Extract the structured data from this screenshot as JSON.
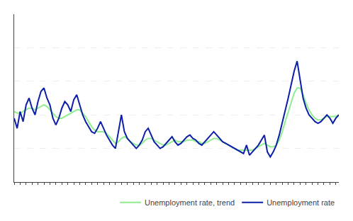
{
  "chart_data": {
    "type": "line",
    "x": [
      0,
      1,
      2,
      3,
      4,
      5,
      6,
      7,
      8,
      9,
      10,
      11,
      12,
      13,
      14,
      15,
      16,
      17,
      18,
      19,
      20,
      21,
      22,
      23,
      24,
      25,
      26,
      27,
      28,
      29,
      30,
      31,
      32,
      33,
      34,
      35,
      36,
      37,
      38,
      39,
      40,
      41,
      42,
      43,
      44,
      45,
      46,
      47,
      48,
      49,
      50,
      51,
      52,
      53,
      54,
      55,
      56,
      57,
      58,
      59,
      60,
      61,
      62,
      63,
      64,
      65,
      66,
      67,
      68,
      69,
      70,
      71,
      72,
      73,
      74,
      75,
      76,
      77,
      78,
      79,
      80,
      81,
      82,
      83,
      84,
      85,
      86,
      87,
      88,
      89,
      90,
      91,
      92,
      93,
      94,
      95,
      96,
      97,
      98,
      99,
      100,
      101,
      102,
      103,
      104,
      105,
      106,
      107,
      108,
      109
    ],
    "series": [
      {
        "name": "Unemployment rate, trend",
        "color": "#90ee90",
        "values": [
          8.2,
          8.1,
          8.1,
          8.2,
          8.3,
          8.4,
          8.4,
          8.3,
          8.4,
          8.5,
          8.6,
          8.5,
          8.3,
          8.1,
          7.9,
          7.8,
          7.8,
          7.9,
          8.0,
          8.1,
          8.2,
          8.3,
          8.3,
          8.1,
          7.9,
          7.6,
          7.3,
          7.1,
          7.0,
          7.0,
          7.0,
          6.9,
          6.7,
          6.5,
          6.3,
          6.4,
          6.6,
          6.7,
          6.6,
          6.4,
          6.3,
          6.2,
          6.2,
          6.3,
          6.5,
          6.6,
          6.6,
          6.5,
          6.4,
          6.3,
          6.2,
          6.2,
          6.3,
          6.4,
          6.5,
          6.4,
          6.4,
          6.4,
          6.5,
          6.5,
          6.5,
          6.4,
          6.4,
          6.3,
          6.3,
          6.4,
          6.5,
          6.6,
          6.6,
          6.5,
          6.4,
          6.3,
          6.2,
          6.1,
          6.0,
          5.9,
          5.9,
          5.9,
          5.9,
          5.9,
          5.9,
          6.0,
          6.1,
          6.2,
          6.3,
          6.2,
          6.1,
          6.1,
          6.2,
          6.5,
          7.0,
          7.6,
          8.2,
          8.8,
          9.3,
          9.6,
          9.6,
          9.2,
          8.7,
          8.3,
          8.0,
          7.8,
          7.7,
          7.7,
          7.8,
          7.9,
          7.9,
          7.9,
          7.9,
          8.0
        ]
      },
      {
        "name": "Unemployment rate",
        "color": "#0c1fa8",
        "values": [
          7.8,
          7.2,
          8.2,
          7.6,
          8.6,
          9.0,
          8.4,
          8.0,
          8.8,
          9.4,
          9.6,
          9.0,
          8.6,
          7.8,
          7.4,
          7.8,
          8.4,
          8.8,
          8.6,
          8.2,
          8.9,
          9.2,
          8.6,
          8.0,
          7.6,
          7.3,
          7.0,
          6.9,
          7.2,
          7.6,
          7.2,
          6.8,
          6.5,
          6.2,
          6.0,
          7.0,
          8.0,
          7.0,
          6.6,
          6.4,
          6.2,
          6.0,
          6.2,
          6.5,
          7.0,
          7.2,
          6.8,
          6.4,
          6.2,
          6.0,
          6.1,
          6.3,
          6.5,
          6.7,
          6.4,
          6.2,
          6.3,
          6.5,
          6.7,
          6.8,
          6.6,
          6.5,
          6.3,
          6.2,
          6.4,
          6.6,
          6.8,
          7.0,
          6.8,
          6.6,
          6.4,
          6.3,
          6.2,
          6.1,
          6.0,
          5.9,
          5.8,
          5.7,
          6.2,
          5.6,
          5.8,
          6.0,
          6.2,
          6.5,
          6.8,
          5.8,
          5.5,
          5.8,
          6.2,
          6.8,
          7.5,
          8.2,
          9.0,
          9.8,
          10.6,
          11.2,
          10.0,
          9.0,
          8.4,
          8.0,
          7.8,
          7.6,
          7.5,
          7.6,
          7.8,
          8.0,
          7.8,
          7.5,
          7.8,
          8.0
        ]
      }
    ],
    "xlim": [
      0,
      109
    ],
    "xticks": [
      0,
      2,
      4,
      6,
      8,
      10,
      12,
      14,
      16,
      18,
      20,
      22,
      24,
      26,
      28,
      30,
      32,
      34,
      36,
      38,
      40,
      42,
      44,
      46,
      48,
      50,
      52,
      54,
      56,
      58,
      60,
      62,
      64,
      66,
      68,
      70,
      72,
      74,
      76,
      78,
      80,
      82,
      84,
      86,
      88,
      90,
      92,
      94,
      96,
      98,
      100,
      102,
      104,
      106,
      108
    ],
    "ylim": [
      4.0,
      14.0
    ],
    "yticks": [
      6.0,
      8.0,
      10.0,
      12.0
    ],
    "grid": "y",
    "legend": "lower right",
    "tick_labels": false
  }
}
